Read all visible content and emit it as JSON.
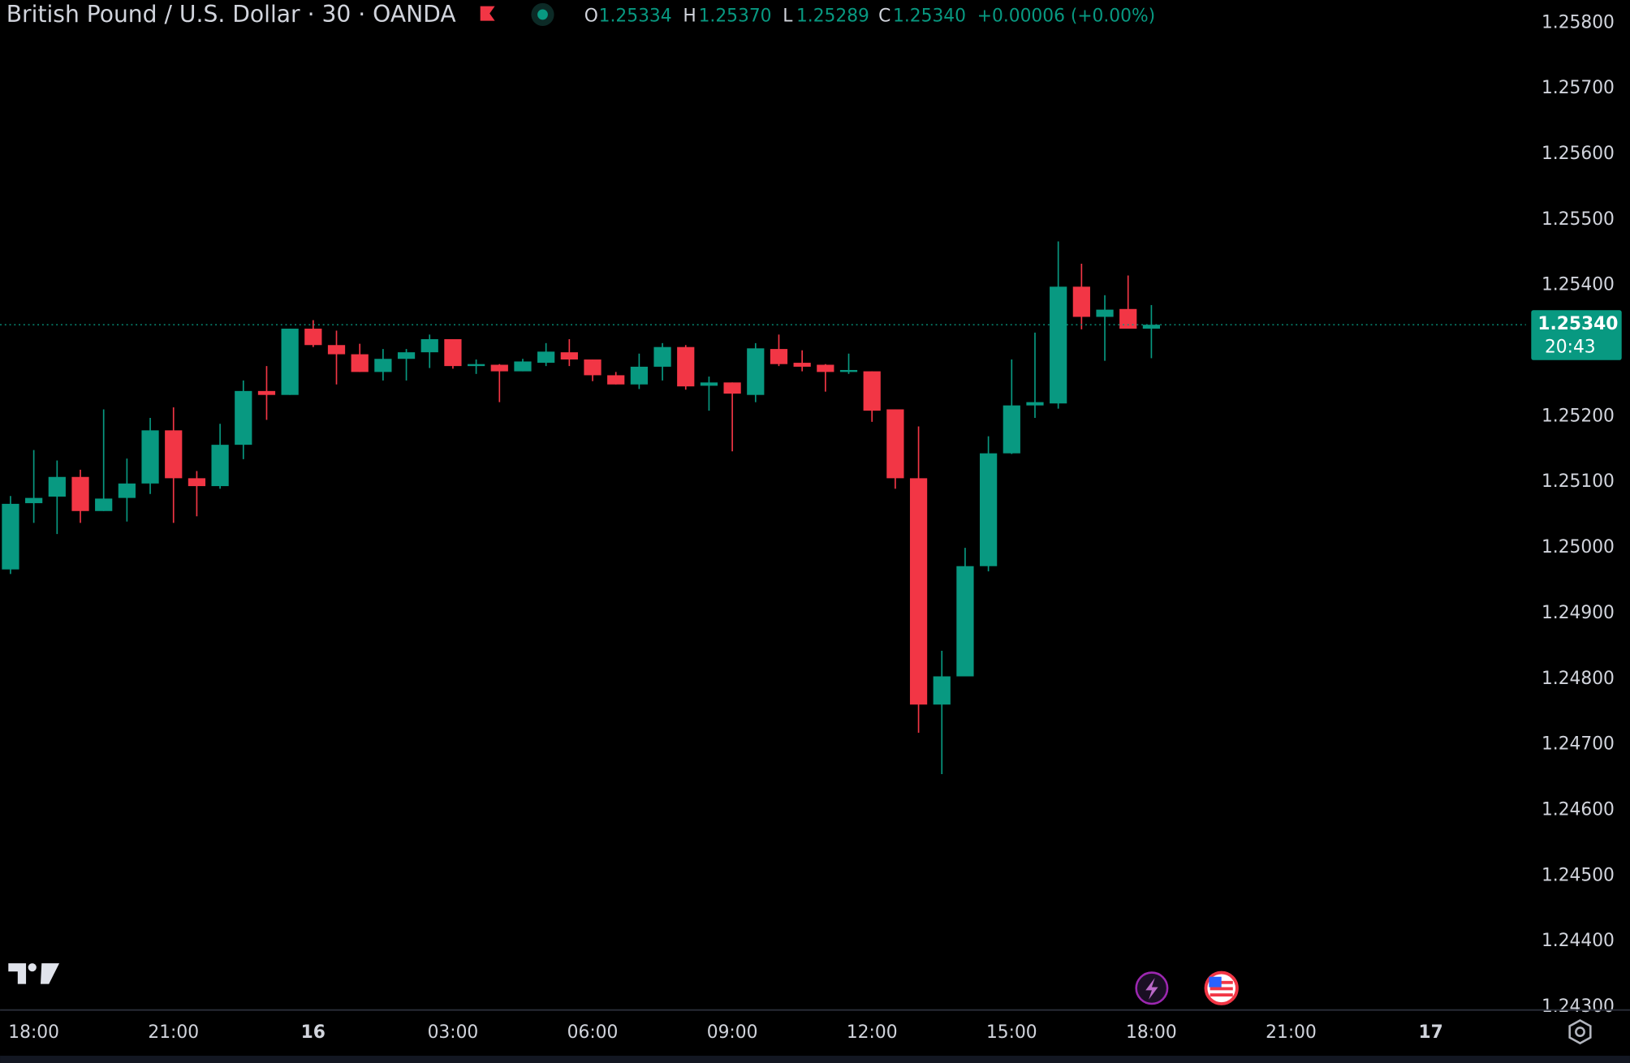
{
  "chart_data": {
    "type": "candlestick",
    "title": "British Pound / U.S. Dollar · 30 · OANDA",
    "ohlc_legend": [
      {
        "label": "O",
        "text": "1.25334"
      },
      {
        "label": "H",
        "text": "1.25370"
      },
      {
        "label": "L",
        "text": "1.25289"
      },
      {
        "label": "C",
        "text": "1.25340"
      }
    ],
    "change": "+0.00006 (+0.00%)",
    "last_price": {
      "value": 1.2534,
      "label": "1.25340"
    },
    "countdown": "20:43",
    "up_color": "#089981",
    "down_color": "#f23645",
    "open": [
      1.24967,
      1.25068,
      1.25078,
      1.25108,
      1.25056,
      1.25076,
      1.25098,
      1.25179,
      1.25106,
      1.25094,
      1.25157,
      1.25239,
      1.25233,
      1.25334,
      1.25309,
      1.25295,
      1.25268,
      1.25288,
      1.25298,
      1.25318,
      1.25277,
      1.25279,
      1.25269,
      1.25282,
      1.25298,
      1.25287,
      1.25263,
      1.25249,
      1.25276,
      1.25306,
      1.25247,
      1.25252,
      1.25233,
      1.25303,
      1.25282,
      1.25279,
      1.25268,
      1.25269,
      1.25211,
      1.25106,
      1.24761,
      1.24804,
      1.24972,
      1.25144,
      1.25217,
      1.2522,
      1.25398,
      1.25352,
      1.25364,
      1.25334
    ],
    "high": [
      1.25079,
      1.25149,
      1.25133,
      1.25119,
      1.25211,
      1.25136,
      1.25198,
      1.25214,
      1.25117,
      1.25189,
      1.25255,
      1.25277,
      1.25334,
      1.25347,
      1.25331,
      1.25311,
      1.25303,
      1.25303,
      1.25325,
      1.25318,
      1.25287,
      1.2528,
      1.25288,
      1.25312,
      1.25318,
      1.25287,
      1.25268,
      1.25296,
      1.25312,
      1.25309,
      1.25261,
      1.25252,
      1.25312,
      1.25325,
      1.25301,
      1.2528,
      1.25296,
      1.25269,
      1.25211,
      1.25185,
      1.24843,
      1.25,
      1.2517,
      1.25287,
      1.25328,
      1.25467,
      1.25433,
      1.25385,
      1.25415,
      1.2537
    ],
    "low": [
      1.2496,
      1.25038,
      1.25021,
      1.25038,
      1.25056,
      1.2504,
      1.25082,
      1.25038,
      1.25048,
      1.2509,
      1.25135,
      1.25195,
      1.25233,
      1.25306,
      1.25249,
      1.25268,
      1.25255,
      1.25255,
      1.25274,
      1.25273,
      1.25265,
      1.25222,
      1.25269,
      1.25277,
      1.25277,
      1.25254,
      1.25249,
      1.25242,
      1.25255,
      1.25241,
      1.25209,
      1.25147,
      1.25222,
      1.25277,
      1.25269,
      1.25238,
      1.25265,
      1.25192,
      1.2509,
      1.24718,
      1.24655,
      1.24804,
      1.24964,
      1.25143,
      1.25198,
      1.25212,
      1.25333,
      1.25285,
      1.25334,
      1.25289
    ],
    "close": [
      1.25067,
      1.25076,
      1.25108,
      1.25056,
      1.25075,
      1.25098,
      1.25179,
      1.25106,
      1.25094,
      1.25157,
      1.25239,
      1.25233,
      1.25334,
      1.25309,
      1.25295,
      1.25268,
      1.25288,
      1.25298,
      1.25318,
      1.25277,
      1.2528,
      1.25269,
      1.25284,
      1.25299,
      1.25287,
      1.25263,
      1.25249,
      1.25276,
      1.25306,
      1.25246,
      1.25252,
      1.25235,
      1.25304,
      1.2528,
      1.25276,
      1.25268,
      1.25271,
      1.25209,
      1.25106,
      1.24761,
      1.24804,
      1.24972,
      1.25144,
      1.25217,
      1.25222,
      1.25398,
      1.25352,
      1.25363,
      1.25334,
      1.2534
    ],
    "xlim": [
      -0.45,
      65.09
    ],
    "xticks": [
      {
        "value": 1,
        "label": "18:00"
      },
      {
        "value": 7,
        "label": "21:00"
      },
      {
        "value": 13,
        "label": "16"
      },
      {
        "value": 19,
        "label": "03:00"
      },
      {
        "value": 25,
        "label": "06:00"
      },
      {
        "value": 31,
        "label": "09:00"
      },
      {
        "value": 37,
        "label": "12:00"
      },
      {
        "value": 43,
        "label": "15:00"
      },
      {
        "value": 49,
        "label": "18:00"
      },
      {
        "value": 55,
        "label": "21:00"
      },
      {
        "value": 61,
        "label": "17"
      }
    ],
    "ylim": [
      1.24297,
      1.25835
    ],
    "yticks": [
      {
        "value": 1.243,
        "label": "1.24300"
      },
      {
        "value": 1.244,
        "label": "1.24400"
      },
      {
        "value": 1.245,
        "label": "1.24500"
      },
      {
        "value": 1.246,
        "label": "1.24600"
      },
      {
        "value": 1.247,
        "label": "1.24700"
      },
      {
        "value": 1.248,
        "label": "1.24800"
      },
      {
        "value": 1.249,
        "label": "1.24900"
      },
      {
        "value": 1.25,
        "label": "1.25000"
      },
      {
        "value": 1.251,
        "label": "1.25100"
      },
      {
        "value": 1.252,
        "label": "1.25200"
      },
      {
        "value": 1.253,
        "label": "1.25300"
      },
      {
        "value": 1.254,
        "label": "1.25400"
      },
      {
        "value": 1.255,
        "label": "1.25500"
      },
      {
        "value": 1.256,
        "label": "1.25600"
      },
      {
        "value": 1.257,
        "label": "1.25700"
      },
      {
        "value": 1.258,
        "label": "1.25800"
      }
    ]
  }
}
